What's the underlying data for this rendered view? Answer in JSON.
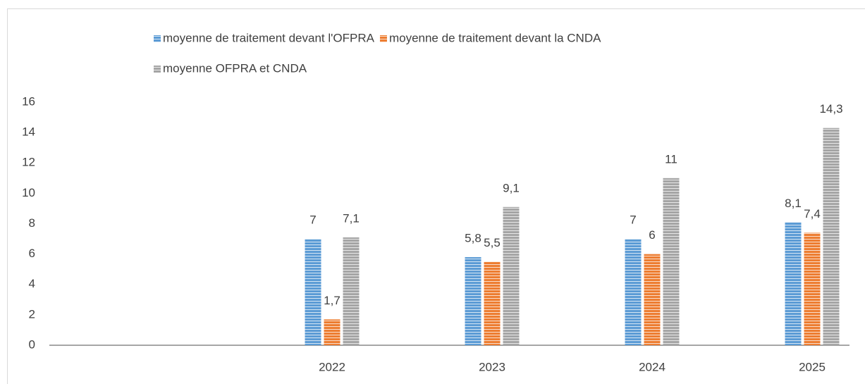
{
  "chart_data": {
    "type": "bar",
    "categories": [
      "2022",
      "2023",
      "2024",
      "2025"
    ],
    "series": [
      {
        "name": "moyenne de traitement devant l'OFPRA",
        "color": "#5b9bd5",
        "values": [
          7,
          5.8,
          7,
          8.1
        ],
        "value_labels": [
          "7",
          "5,8",
          "7",
          "8,1"
        ]
      },
      {
        "name": "moyenne de traitement devant la CNDA",
        "color": "#ed7d31",
        "values": [
          1.7,
          5.5,
          6,
          7.4
        ],
        "value_labels": [
          "1,7",
          "5,5",
          "6",
          "7,4"
        ]
      },
      {
        "name": "moyenne OFPRA et CNDA",
        "color": "#a5a5a5",
        "values": [
          7.1,
          9.1,
          11,
          14.3
        ],
        "value_labels": [
          "7,1",
          "9,1",
          "11",
          "14,3"
        ]
      }
    ],
    "ylim": [
      0,
      16
    ],
    "yticks": [
      0,
      2,
      4,
      6,
      8,
      10,
      12,
      14,
      16
    ],
    "grid": false,
    "legend": "top"
  }
}
